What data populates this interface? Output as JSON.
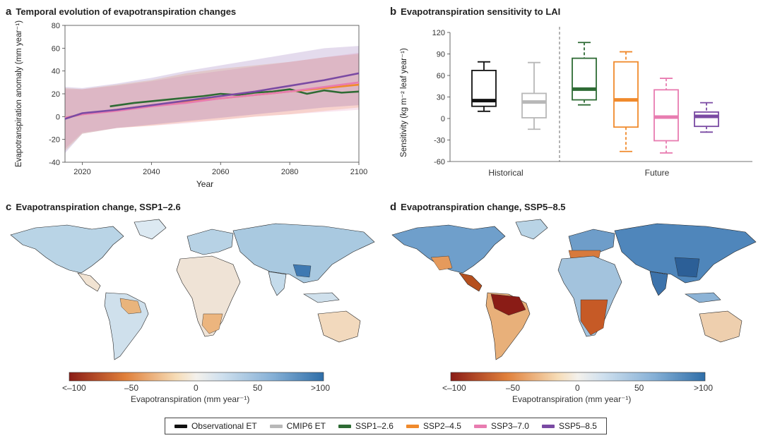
{
  "colors": {
    "observational": "#111111",
    "cmip6": "#b8b8b8",
    "ssp126": "#2e6b34",
    "ssp245": "#f08a2c",
    "ssp370": "#e87cb0",
    "ssp585": "#7a4aa3",
    "dry": "#8a1c16",
    "wet": "#2e6da6"
  },
  "panel_a": {
    "letter": "a",
    "title": "Temporal evolution of evapotranspiration changes"
  },
  "panel_b": {
    "letter": "b",
    "title": "Evapotranspiration sensitivity to LAI"
  },
  "panel_c": {
    "letter": "c",
    "title": "Evapotranspiration change, SSP1–2.6"
  },
  "panel_d": {
    "letter": "d",
    "title": "Evapotranspiration change, SSP5–8.5"
  },
  "colorbar": {
    "ticks": [
      "<–100",
      "–50",
      "0",
      "50",
      ">100"
    ],
    "label": "Evapotranspiration (mm year⁻¹)"
  },
  "legend": [
    {
      "key": "observational",
      "label": "Observational ET"
    },
    {
      "key": "cmip6",
      "label": "CMIP6 ET"
    },
    {
      "key": "ssp126",
      "label": "SSP1–2.6"
    },
    {
      "key": "ssp245",
      "label": "SSP2–4.5"
    },
    {
      "key": "ssp370",
      "label": "SSP3–7.0"
    },
    {
      "key": "ssp585",
      "label": "SSP5–8.5"
    }
  ],
  "chart_data": [
    {
      "type": "line",
      "title": "Temporal evolution of evapotranspiration changes",
      "xlabel": "Year",
      "ylabel": "Evapotranspiration anomaly (mm year⁻¹)",
      "xlim": [
        2015,
        2100
      ],
      "ylim": [
        -40,
        80
      ],
      "xticks": [
        2020,
        2040,
        2060,
        2080,
        2100
      ],
      "yticks": [
        -40,
        -20,
        0,
        20,
        40,
        60,
        80
      ],
      "series": [
        {
          "name": "SSP1–2.6",
          "key": "ssp126",
          "x": [
            2028,
            2035,
            2045,
            2055,
            2060,
            2065,
            2070,
            2075,
            2080,
            2085,
            2090,
            2095,
            2100
          ],
          "values": [
            9,
            12,
            15,
            18,
            20,
            19,
            21,
            22,
            24,
            20,
            23,
            21,
            22
          ],
          "band_low": null,
          "band_high": null
        },
        {
          "name": "SSP2–4.5",
          "key": "ssp245",
          "x": [
            2015,
            2020,
            2030,
            2040,
            2050,
            2060,
            2070,
            2080,
            2090,
            2100
          ],
          "values": [
            -1,
            2,
            6,
            10,
            13,
            16,
            19,
            22,
            25,
            28
          ],
          "band_low": [
            -30,
            -15,
            -10,
            -8,
            -5,
            -3,
            0,
            2,
            5,
            8
          ],
          "band_high": [
            25,
            24,
            28,
            32,
            38,
            42,
            45,
            48,
            52,
            55
          ]
        },
        {
          "name": "SSP3–7.0",
          "key": "ssp370",
          "x": [
            2015,
            2020,
            2030,
            2040,
            2050,
            2060,
            2070,
            2080,
            2090,
            2100
          ],
          "values": [
            -1,
            2,
            5,
            9,
            12,
            16,
            19,
            22,
            26,
            30
          ],
          "band_low": [
            -28,
            -14,
            -10,
            -8,
            -6,
            -3,
            0,
            2,
            4,
            6
          ],
          "band_high": [
            24,
            24,
            27,
            31,
            36,
            40,
            44,
            48,
            52,
            56
          ]
        },
        {
          "name": "SSP5–8.5",
          "key": "ssp585",
          "x": [
            2015,
            2020,
            2030,
            2040,
            2050,
            2060,
            2070,
            2080,
            2090,
            2100
          ],
          "values": [
            -2,
            3,
            6,
            10,
            14,
            18,
            22,
            27,
            32,
            38
          ],
          "band_low": [
            -32,
            -15,
            -10,
            -7,
            -4,
            -1,
            2,
            5,
            8,
            10
          ],
          "band_high": [
            26,
            25,
            29,
            34,
            40,
            45,
            50,
            55,
            60,
            62
          ]
        }
      ]
    },
    {
      "type": "box",
      "title": "Evapotranspiration sensitivity to LAI",
      "ylabel": "Sensitivity (kg m⁻² leaf year⁻¹)",
      "ylim": [
        -60,
        120
      ],
      "yticks": [
        -60,
        -30,
        0,
        30,
        60,
        90,
        120
      ],
      "group_labels": [
        "Historical",
        "Future"
      ],
      "boxes": [
        {
          "name": "Observational ET",
          "key": "observational",
          "group": "Historical",
          "min": 10,
          "q1": 17,
          "median": 25,
          "q3": 67,
          "max": 79
        },
        {
          "name": "CMIP6 ET",
          "key": "cmip6",
          "group": "Historical",
          "min": -15,
          "q1": 1,
          "median": 23,
          "q3": 35,
          "max": 78
        },
        {
          "name": "SSP1–2.6",
          "key": "ssp126",
          "group": "Future",
          "min": 19,
          "q1": 26,
          "median": 41,
          "q3": 84,
          "max": 106
        },
        {
          "name": "SSP2–4.5",
          "key": "ssp245",
          "group": "Future",
          "min": -46,
          "q1": -12,
          "median": 26,
          "q3": 79,
          "max": 93
        },
        {
          "name": "SSP3–7.0",
          "key": "ssp370",
          "group": "Future",
          "min": -48,
          "q1": -31,
          "median": 2,
          "q3": 40,
          "max": 56
        },
        {
          "name": "SSP5–8.5",
          "key": "ssp585",
          "group": "Future",
          "min": -19,
          "q1": -11,
          "median": 3,
          "q3": 9,
          "max": 22
        }
      ]
    }
  ]
}
